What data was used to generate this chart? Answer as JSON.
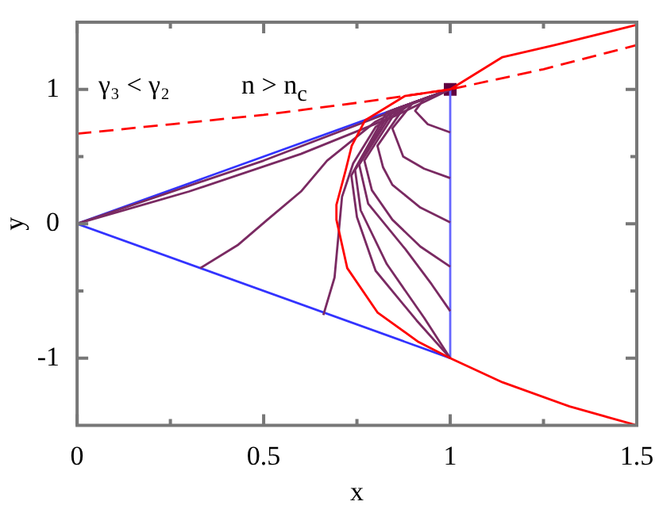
{
  "chart_data": {
    "type": "line",
    "xlabel": "x",
    "ylabel": "y",
    "annotations": [
      "γ₃ < γ₂",
      "n > n$_{c}$"
    ],
    "xlim": [
      0,
      1.5
    ],
    "ylim": [
      -1.5,
      1.5
    ],
    "xticks": [
      0,
      {
        "value": 0.25,
        "label": null
      },
      0.5,
      {
        "value": 0.75,
        "label": null
      },
      1,
      {
        "value": 1.25,
        "label": null
      },
      1.5
    ],
    "yticks": [
      -1,
      {
        "value": -0.5,
        "label": null
      },
      0,
      {
        "value": 0.5,
        "label": null
      },
      1
    ],
    "grid": false,
    "legend": false,
    "marker": "none",
    "line_style": "solid",
    "series": [
      {
        "color": "#ff0000",
        "x": [
          1.5,
          1.32,
          1.14,
          1,
          0.915,
          0.805,
          0.724,
          0.695,
          0.695,
          0.72,
          0.736,
          0.772,
          0.878,
          1,
          1.14,
          1.28,
          1.5
        ],
        "values": [
          -1.5,
          -1.36,
          -1.18,
          -1,
          -0.88,
          -0.66,
          -0.33,
          0.03,
          0.14,
          0.4,
          0.58,
          0.77,
          0.95,
          1,
          1.24,
          1.33,
          1.48
        ]
      },
      {
        "color": "#ff0000",
        "line_style": "dashed",
        "x": [
          0,
          0.25,
          0.5,
          0.75,
          1,
          1.25,
          1.5
        ],
        "values": [
          0.67,
          0.74,
          0.81,
          0.9,
          1,
          1.15,
          1.33
        ]
      },
      {
        "color": "#7a2a62",
        "x": [
          0,
          0.5,
          1
        ],
        "values": [
          0,
          0.47,
          1
        ]
      },
      {
        "color": "#7a2a62",
        "x": [
          0,
          0.3,
          0.6,
          0.85,
          1
        ],
        "values": [
          0,
          0.24,
          0.52,
          0.8,
          1
        ]
      },
      {
        "color": "#7a2a62",
        "x": [
          0.33,
          0.43,
          0.51,
          0.6,
          0.67,
          0.8,
          0.9,
          1
        ],
        "values": [
          -0.33,
          -0.16,
          0.03,
          0.24,
          0.47,
          0.76,
          0.9,
          1
        ]
      },
      {
        "color": "#7a2a62",
        "x": [
          0.66,
          0.69,
          0.7,
          0.71,
          0.74,
          0.8,
          0.9,
          1
        ],
        "values": [
          -0.68,
          -0.4,
          -0.1,
          0.2,
          0.45,
          0.72,
          0.9,
          1
        ]
      },
      {
        "color": "#7a2a62",
        "x": [
          1,
          0.93,
          0.906,
          0.94,
          1
        ],
        "values": [
          1,
          0.93,
          0.84,
          0.74,
          0.68
        ]
      },
      {
        "color": "#7a2a62",
        "x": [
          1,
          0.9,
          0.845,
          0.874,
          0.93,
          1
        ],
        "values": [
          1,
          0.9,
          0.71,
          0.5,
          0.41,
          0.34
        ]
      },
      {
        "color": "#7a2a62",
        "x": [
          1,
          0.88,
          0.805,
          0.82,
          0.845,
          0.92,
          1
        ],
        "values": [
          1,
          0.88,
          0.58,
          0.42,
          0.29,
          0.12,
          0.01
        ]
      },
      {
        "color": "#7a2a62",
        "x": [
          1,
          0.86,
          0.77,
          0.79,
          0.845,
          0.92,
          1
        ],
        "values": [
          1,
          0.86,
          0.47,
          0.25,
          0.03,
          -0.17,
          -0.32
        ]
      },
      {
        "color": "#7a2a62",
        "x": [
          1,
          0.85,
          0.756,
          0.78,
          0.88,
          0.95,
          1
        ],
        "values": [
          1,
          0.85,
          0.44,
          0.15,
          -0.19,
          -0.45,
          -0.65
        ]
      },
      {
        "color": "#7a2a62",
        "x": [
          1,
          0.84,
          0.745,
          0.76,
          0.83,
          0.93,
          1
        ],
        "values": [
          1,
          0.84,
          0.4,
          0.1,
          -0.3,
          -0.7,
          -1
        ]
      },
      {
        "color": "#7a2a62",
        "x": [
          1,
          0.83,
          0.735,
          0.75,
          0.8,
          0.91,
          1
        ],
        "values": [
          1,
          0.83,
          0.36,
          0.05,
          -0.35,
          -0.72,
          -1
        ]
      },
      {
        "color": "#3333ff",
        "x": [
          0,
          1
        ],
        "values": [
          0,
          1
        ]
      },
      {
        "color": "#3333ff",
        "x": [
          0,
          1
        ],
        "values": [
          0,
          -1
        ]
      },
      {
        "color": "#6666ff",
        "x": [
          1,
          1
        ],
        "values": [
          -1,
          1
        ]
      },
      {
        "type": "scatter",
        "marker": "square",
        "color": "#600040",
        "x": [
          1
        ],
        "values": [
          1
        ]
      }
    ]
  }
}
